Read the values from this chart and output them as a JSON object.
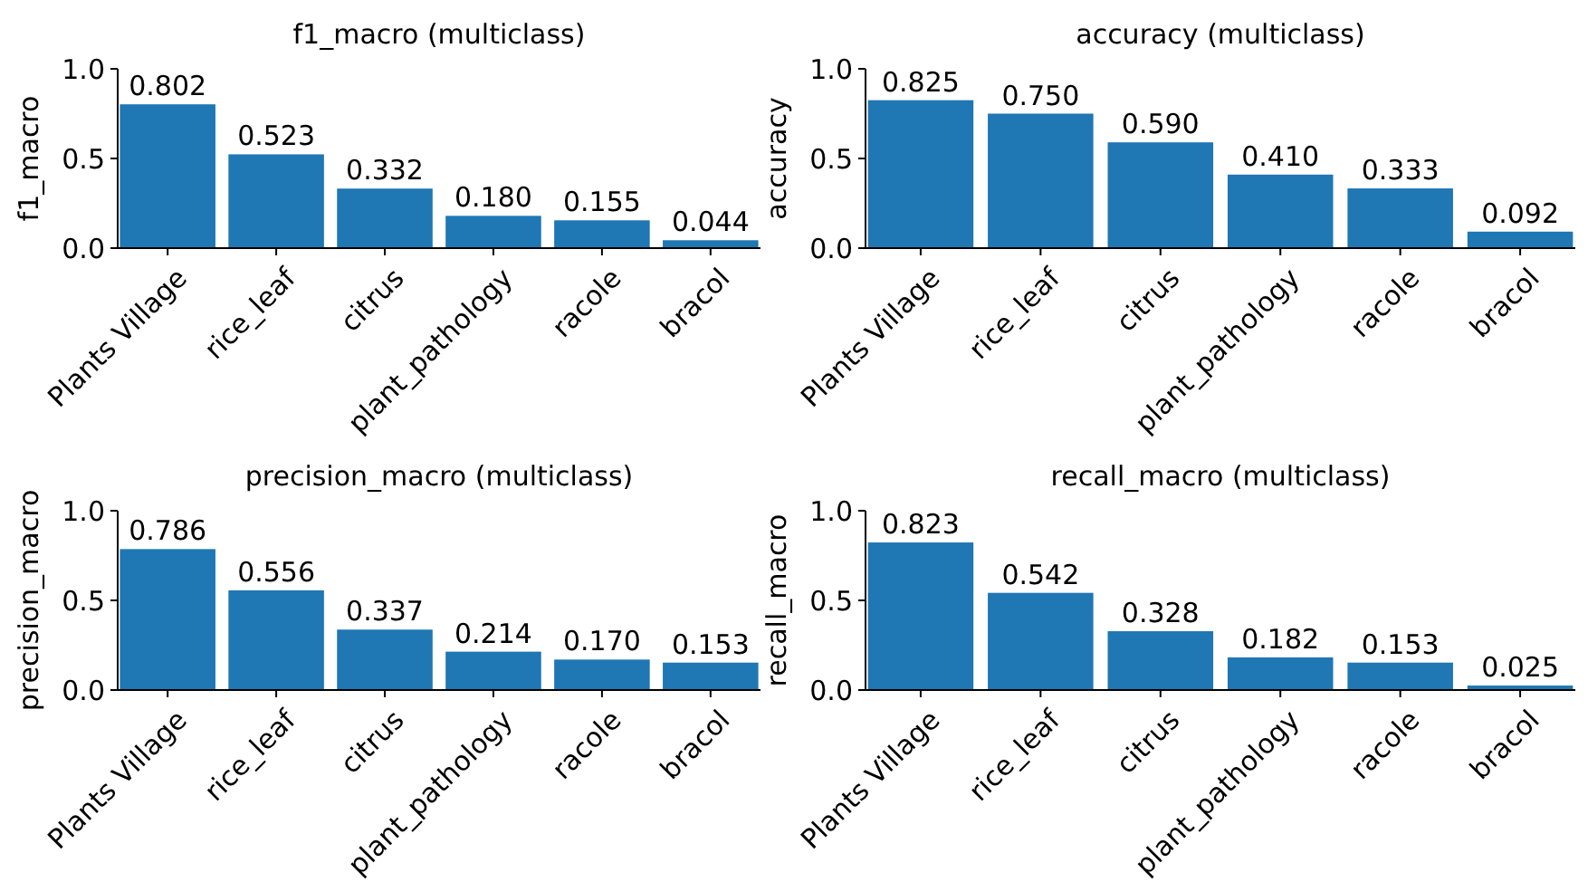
{
  "chart_data": [
    {
      "type": "bar",
      "title": "f1_macro (multiclass)",
      "ylabel": "f1_macro",
      "categories": [
        "Plants Village",
        "rice_leaf",
        "citrus",
        "plant_pathology",
        "racole",
        "bracol"
      ],
      "values": [
        0.802,
        0.523,
        0.332,
        0.18,
        0.155,
        0.044
      ],
      "value_labels": [
        "0.802",
        "0.523",
        "0.332",
        "0.180",
        "0.155",
        "0.044"
      ],
      "color": "#1f77b4",
      "ylim": [
        0,
        1
      ],
      "yticks": [
        {
          "value": 0,
          "label": "0.0"
        },
        {
          "value": 0.5,
          "label": "0.5"
        },
        {
          "value": 1,
          "label": "1.0"
        }
      ],
      "grid": false
    },
    {
      "type": "bar",
      "title": "accuracy (multiclass)",
      "ylabel": "accuracy",
      "categories": [
        "Plants Village",
        "rice_leaf",
        "citrus",
        "plant_pathology",
        "racole",
        "bracol"
      ],
      "values": [
        0.825,
        0.75,
        0.59,
        0.41,
        0.333,
        0.092
      ],
      "value_labels": [
        "0.825",
        "0.750",
        "0.590",
        "0.410",
        "0.333",
        "0.092"
      ],
      "color": "#1f77b4",
      "ylim": [
        0,
        1
      ],
      "yticks": [
        {
          "value": 0,
          "label": "0.0"
        },
        {
          "value": 0.5,
          "label": "0.5"
        },
        {
          "value": 1,
          "label": "1.0"
        }
      ],
      "grid": false
    },
    {
      "type": "bar",
      "title": "precision_macro (multiclass)",
      "ylabel": "precision_macro",
      "categories": [
        "Plants Village",
        "rice_leaf",
        "citrus",
        "plant_pathology",
        "racole",
        "bracol"
      ],
      "values": [
        0.786,
        0.556,
        0.337,
        0.214,
        0.17,
        0.153
      ],
      "value_labels": [
        "0.786",
        "0.556",
        "0.337",
        "0.214",
        "0.170",
        "0.153"
      ],
      "color": "#1f77b4",
      "ylim": [
        0,
        1
      ],
      "yticks": [
        {
          "value": 0,
          "label": "0.0"
        },
        {
          "value": 0.5,
          "label": "0.5"
        },
        {
          "value": 1,
          "label": "1.0"
        }
      ],
      "grid": false
    },
    {
      "type": "bar",
      "title": "recall_macro (multiclass)",
      "ylabel": "recall_macro",
      "categories": [
        "Plants Village",
        "rice_leaf",
        "citrus",
        "plant_pathology",
        "racole",
        "bracol"
      ],
      "values": [
        0.823,
        0.542,
        0.328,
        0.182,
        0.153,
        0.025
      ],
      "value_labels": [
        "0.823",
        "0.542",
        "0.328",
        "0.182",
        "0.153",
        "0.025"
      ],
      "color": "#1f77b4",
      "ylim": [
        0,
        1
      ],
      "yticks": [
        {
          "value": 0,
          "label": "0.0"
        },
        {
          "value": 0.5,
          "label": "0.5"
        },
        {
          "value": 1,
          "label": "1.0"
        }
      ],
      "grid": false
    }
  ]
}
